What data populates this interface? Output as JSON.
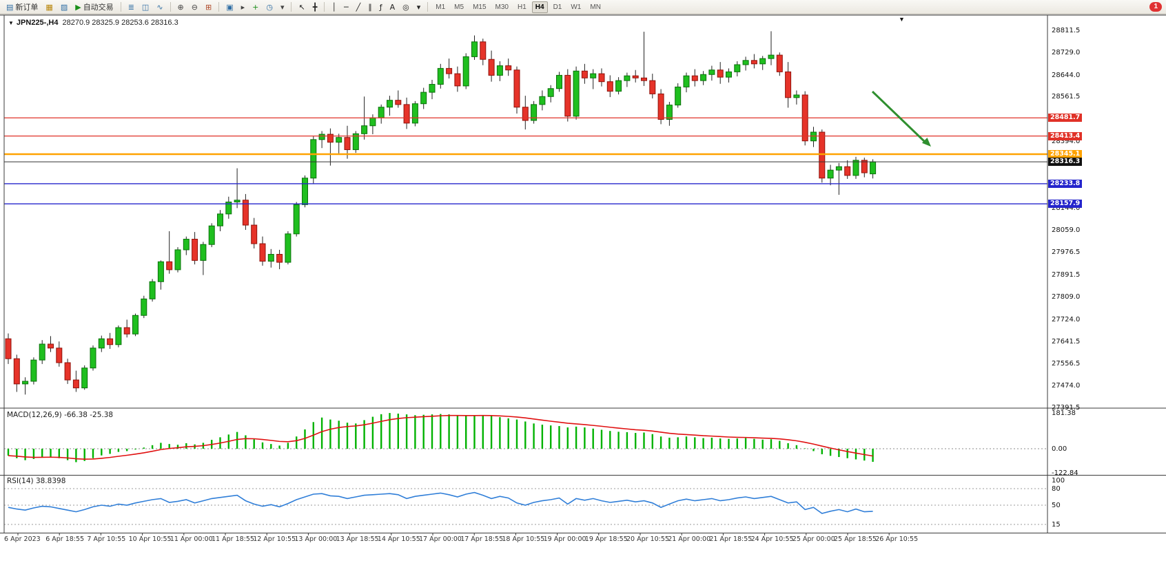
{
  "toolbar": {
    "notification_count": "1",
    "groups": [
      {
        "buttons": [
          {
            "name": "new-order-button",
            "icon": "new-order-icon",
            "glyph": "▤",
            "glyph_color": "#2e6da4",
            "label": "新订单"
          },
          {
            "name": "charts-button",
            "icon": "chart-window-icon",
            "glyph": "▦",
            "glyph_color": "#b8860b"
          },
          {
            "name": "profiles-button",
            "icon": "profiles-icon",
            "glyph": "▨",
            "glyph_color": "#2e6da4"
          },
          {
            "name": "auto-trading-button",
            "icon": "auto-trading-icon",
            "glyph": "▶",
            "glyph_color": "#1a8f1a",
            "label": "自动交易"
          }
        ]
      },
      {
        "buttons": [
          {
            "name": "bar-chart-button",
            "icon": "bar-chart-icon",
            "glyph": "≣",
            "glyph_color": "#2e6da4"
          },
          {
            "name": "candlestick-chart-button",
            "icon": "candlestick-chart-icon",
            "glyph": "◫",
            "glyph_color": "#2e6da4"
          },
          {
            "name": "line-chart-button",
            "icon": "line-chart-icon",
            "glyph": "∿",
            "glyph_color": "#2e6da4"
          }
        ]
      },
      {
        "buttons": [
          {
            "name": "zoom-in-button",
            "icon": "zoom-in-icon",
            "glyph": "⊕",
            "glyph_color": "#444444"
          },
          {
            "name": "zoom-out-button",
            "icon": "zoom-out-icon",
            "glyph": "⊖",
            "glyph_color": "#444444"
          },
          {
            "name": "tile-windows-button",
            "icon": "tile-windows-icon",
            "glyph": "⊞",
            "glyph_color": "#b04a2a"
          }
        ]
      },
      {
        "buttons": [
          {
            "name": "arrange-windows-button",
            "icon": "arrange-windows-icon",
            "glyph": "▣",
            "glyph_color": "#2e6da4"
          },
          {
            "name": "auto-scroll-button",
            "icon": "auto-scroll-icon",
            "glyph": "▸",
            "glyph_color": "#444444"
          },
          {
            "name": "indicators-button",
            "icon": "add-indicator-icon",
            "glyph": "+",
            "glyph_color": "#1a8f1a"
          },
          {
            "name": "periods-button",
            "icon": "clock-icon",
            "glyph": "◷",
            "glyph_color": "#2e6da4"
          },
          {
            "name": "templates-button",
            "icon": "templates-icon",
            "glyph": "▾",
            "glyph_color": "#444444"
          }
        ]
      },
      {
        "buttons": [
          {
            "name": "cursor-button",
            "icon": "cursor-icon",
            "glyph": "↖",
            "glyph_color": "#222222"
          },
          {
            "name": "crosshair-button",
            "icon": "crosshair-icon",
            "glyph": "╋",
            "glyph_color": "#222222"
          }
        ]
      },
      {
        "buttons": [
          {
            "name": "vertical-line-button",
            "icon": "vertical-line-icon",
            "glyph": "│",
            "glyph_color": "#222222"
          },
          {
            "name": "horizontal-line-button",
            "icon": "horizontal-line-icon",
            "glyph": "─",
            "glyph_color": "#222222"
          },
          {
            "name": "trendline-button",
            "icon": "trendline-icon",
            "glyph": "╱",
            "glyph_color": "#222222"
          },
          {
            "name": "channel-button",
            "icon": "equidistant-channel-icon",
            "glyph": "∥",
            "glyph_color": "#222222"
          },
          {
            "name": "fibonacci-button",
            "icon": "fibonacci-icon",
            "glyph": "ƒ",
            "glyph_color": "#222222"
          },
          {
            "name": "text-button",
            "icon": "text-icon",
            "glyph": "A",
            "glyph_color": "#222222"
          },
          {
            "name": "arrow-tool-button",
            "icon": "arrow-object-icon",
            "glyph": "◎",
            "glyph_color": "#222222"
          },
          {
            "name": "shapes-button",
            "icon": "shapes-dropdown-icon",
            "glyph": "▾",
            "glyph_color": "#222222"
          }
        ]
      }
    ],
    "timeframes": {
      "items": [
        "M1",
        "M5",
        "M15",
        "M30",
        "H1",
        "H4",
        "D1",
        "W1",
        "MN"
      ],
      "active": "H4"
    }
  },
  "chart": {
    "symbol_label": "JPN225-,H4",
    "ohlc": "28270.9 28325.9 28253.6 28316.3",
    "price_range": {
      "max": 28811.5,
      "min": 27391.5
    },
    "colors": {
      "bull": "#1fbf1f",
      "bull_border": "#0a700a",
      "bear": "#e63329",
      "bear_border": "#8f120b",
      "wick": "#222222",
      "macd_hist": "#00b200",
      "macd_signal": "#e01010",
      "rsi_line": "#2f7ed8",
      "arrow": "#2f8f2f"
    },
    "axis_ticks": [
      28811.5,
      28729.0,
      28644.0,
      28561.5,
      28394.0,
      28144.0,
      28059.0,
      27976.5,
      27891.5,
      27809.0,
      27724.0,
      27641.5,
      27556.5,
      27474.0,
      27391.5
    ],
    "levels": [
      {
        "price": 28481.7,
        "label": "28481.7",
        "color": "#e03127",
        "width": 1.2
      },
      {
        "price": 28413.4,
        "label": "28413.4",
        "color": "#e03127",
        "width": 1.2
      },
      {
        "price": 28345.1,
        "label": "28345.1",
        "color": "#ffa200",
        "width": 2.4
      },
      {
        "price": 28316.3,
        "label": "28316.3",
        "color": "#333333",
        "width": 1,
        "badge": "#111111"
      },
      {
        "price": 28233.8,
        "label": "28233.8",
        "color": "#2424cc",
        "width": 1.4
      },
      {
        "price": 28157.9,
        "label": "28157.9",
        "color": "#2424cc",
        "width": 1.4
      }
    ],
    "annotation": {
      "type": "arrow",
      "color": "#2f8f2f",
      "from": [
        1266,
        133
      ],
      "to": [
        1351,
        213
      ]
    }
  },
  "chart_data": {
    "type": "candlestick",
    "symbol": "JPN225-",
    "timeframe": "H4",
    "candles": [
      [
        27650,
        27670,
        27555,
        27575
      ],
      [
        27575,
        27590,
        27450,
        27480
      ],
      [
        27480,
        27505,
        27440,
        27490
      ],
      [
        27490,
        27580,
        27478,
        27570
      ],
      [
        27570,
        27645,
        27555,
        27630
      ],
      [
        27630,
        27660,
        27600,
        27615
      ],
      [
        27615,
        27640,
        27545,
        27560
      ],
      [
        27560,
        27575,
        27480,
        27495
      ],
      [
        27495,
        27530,
        27450,
        27465
      ],
      [
        27465,
        27550,
        27458,
        27540
      ],
      [
        27540,
        27625,
        27530,
        27615
      ],
      [
        27615,
        27662,
        27600,
        27650
      ],
      [
        27650,
        27672,
        27612,
        27628
      ],
      [
        27628,
        27700,
        27618,
        27692
      ],
      [
        27692,
        27722,
        27655,
        27668
      ],
      [
        27668,
        27745,
        27660,
        27738
      ],
      [
        27738,
        27812,
        27728,
        27800
      ],
      [
        27800,
        27875,
        27790,
        27865
      ],
      [
        27865,
        27945,
        27835,
        27940
      ],
      [
        27940,
        28055,
        27895,
        27910
      ],
      [
        27910,
        27995,
        27900,
        27985
      ],
      [
        27985,
        28035,
        27965,
        28025
      ],
      [
        28025,
        28052,
        27930,
        27945
      ],
      [
        27945,
        28015,
        27890,
        28005
      ],
      [
        28005,
        28085,
        27995,
        28075
      ],
      [
        28075,
        28135,
        28055,
        28120
      ],
      [
        28120,
        28185,
        28102,
        28165
      ],
      [
        28165,
        28292,
        28142,
        28172
      ],
      [
        28172,
        28195,
        28060,
        28078
      ],
      [
        28078,
        28105,
        27990,
        28008
      ],
      [
        28008,
        28035,
        27925,
        27942
      ],
      [
        27942,
        27988,
        27918,
        27968
      ],
      [
        27968,
        27985,
        27912,
        27938
      ],
      [
        27938,
        28055,
        27930,
        28045
      ],
      [
        28045,
        28165,
        28035,
        28155
      ],
      [
        28155,
        28265,
        28145,
        28255
      ],
      [
        28255,
        28412,
        28235,
        28400
      ],
      [
        28400,
        28432,
        28368,
        28420
      ],
      [
        28420,
        28442,
        28302,
        28390
      ],
      [
        28390,
        28422,
        28348,
        28408
      ],
      [
        28408,
        28452,
        28328,
        28362
      ],
      [
        28362,
        28432,
        28350,
        28422
      ],
      [
        28422,
        28562,
        28400,
        28452
      ],
      [
        28452,
        28495,
        28420,
        28482
      ],
      [
        28482,
        28532,
        28460,
        28522
      ],
      [
        28522,
        28565,
        28490,
        28548
      ],
      [
        28548,
        28585,
        28520,
        28532
      ],
      [
        28532,
        28558,
        28440,
        28462
      ],
      [
        28462,
        28545,
        28450,
        28535
      ],
      [
        28535,
        28595,
        28515,
        28578
      ],
      [
        28578,
        28625,
        28552,
        28608
      ],
      [
        28608,
        28685,
        28592,
        28668
      ],
      [
        28668,
        28705,
        28630,
        28648
      ],
      [
        28648,
        28675,
        28580,
        28602
      ],
      [
        28602,
        28725,
        28590,
        28712
      ],
      [
        28712,
        28792,
        28700,
        28768
      ],
      [
        28768,
        28780,
        28680,
        28702
      ],
      [
        28702,
        28735,
        28618,
        28642
      ],
      [
        28642,
        28695,
        28620,
        28678
      ],
      [
        28678,
        28705,
        28640,
        28662
      ],
      [
        28662,
        28675,
        28498,
        28522
      ],
      [
        28522,
        28565,
        28438,
        28472
      ],
      [
        28472,
        28545,
        28460,
        28532
      ],
      [
        28532,
        28585,
        28510,
        28562
      ],
      [
        28562,
        28605,
        28540,
        28592
      ],
      [
        28592,
        28655,
        28580,
        28642
      ],
      [
        28642,
        28665,
        28468,
        28488
      ],
      [
        28488,
        28675,
        28475,
        28658
      ],
      [
        28658,
        28685,
        28610,
        28632
      ],
      [
        28632,
        28665,
        28590,
        28648
      ],
      [
        28648,
        28668,
        28600,
        28618
      ],
      [
        28618,
        28642,
        28560,
        28582
      ],
      [
        28582,
        28635,
        28570,
        28622
      ],
      [
        28622,
        28652,
        28598,
        28640
      ],
      [
        28640,
        28662,
        28615,
        28632
      ],
      [
        28632,
        28806,
        28602,
        28622
      ],
      [
        28622,
        28648,
        28555,
        28572
      ],
      [
        28572,
        28590,
        28458,
        28476
      ],
      [
        28476,
        28542,
        28452,
        28530
      ],
      [
        28530,
        28612,
        28520,
        28598
      ],
      [
        28598,
        28652,
        28578,
        28640
      ],
      [
        28640,
        28665,
        28600,
        28622
      ],
      [
        28622,
        28658,
        28605,
        28645
      ],
      [
        28645,
        28678,
        28622,
        28662
      ],
      [
        28662,
        28692,
        28610,
        28635
      ],
      [
        28635,
        28668,
        28615,
        28655
      ],
      [
        28655,
        28695,
        28638,
        28682
      ],
      [
        28682,
        28712,
        28660,
        28698
      ],
      [
        28698,
        28722,
        28668,
        28685
      ],
      [
        28685,
        28715,
        28662,
        28705
      ],
      [
        28705,
        28808,
        28680,
        28718
      ],
      [
        28718,
        28728,
        28640,
        28655
      ],
      [
        28655,
        28692,
        28520,
        28558
      ],
      [
        28558,
        28585,
        28532,
        28568
      ],
      [
        28568,
        28582,
        28378,
        28395
      ],
      [
        28395,
        28448,
        28372,
        28428
      ],
      [
        28428,
        28438,
        28238,
        28255
      ],
      [
        28255,
        28305,
        28228,
        28285
      ],
      [
        28285,
        28312,
        28192,
        28298
      ],
      [
        28298,
        28322,
        28252,
        28265
      ],
      [
        28265,
        28335,
        28252,
        28322
      ],
      [
        28322,
        28332,
        28258,
        28275
      ],
      [
        28270.9,
        28325.9,
        28253.6,
        28316.3
      ]
    ],
    "macd": {
      "label": "MACD(12,26,9) -66.38 -25.38",
      "axis": [
        "181.38",
        "0.00",
        "-122.84"
      ],
      "axis_values": [
        181.38,
        0,
        -122.84
      ],
      "values": [
        -35,
        -48,
        -58,
        -52,
        -42,
        -40,
        -48,
        -58,
        -68,
        -62,
        -48,
        -34,
        -26,
        -16,
        -12,
        -4,
        6,
        18,
        30,
        24,
        20,
        28,
        22,
        30,
        45,
        58,
        72,
        85,
        68,
        48,
        32,
        24,
        16,
        30,
        62,
        98,
        135,
        158,
        148,
        142,
        132,
        128,
        145,
        162,
        175,
        181,
        178,
        174,
        170,
        172,
        174,
        176,
        174,
        170,
        166,
        168,
        170,
        166,
        160,
        154,
        148,
        138,
        128,
        122,
        118,
        115,
        108,
        112,
        108,
        102,
        96,
        90,
        86,
        84,
        80,
        82,
        74,
        62,
        56,
        58,
        62,
        58,
        54,
        56,
        52,
        50,
        52,
        54,
        50,
        46,
        48,
        40,
        28,
        18,
        2,
        -12,
        -28,
        -36,
        -42,
        -48,
        -54,
        -60,
        -66.38
      ]
    },
    "rsi": {
      "label": "RSI(14) 38.8398",
      "axis": [
        "100",
        "80",
        "50",
        "15"
      ],
      "axis_values": [
        100,
        80,
        50,
        15
      ],
      "levels": [
        80,
        50,
        15
      ],
      "values": [
        46,
        43,
        41,
        45,
        48,
        47,
        44,
        41,
        38,
        42,
        47,
        50,
        48,
        52,
        50,
        54,
        57,
        60,
        62,
        55,
        57,
        60,
        54,
        58,
        62,
        64,
        66,
        68,
        58,
        52,
        48,
        51,
        47,
        53,
        60,
        65,
        70,
        71,
        67,
        66,
        62,
        65,
        68,
        69,
        70,
        71,
        69,
        62,
        66,
        68,
        70,
        72,
        69,
        65,
        70,
        73,
        68,
        62,
        66,
        63,
        54,
        50,
        55,
        58,
        60,
        63,
        52,
        62,
        59,
        62,
        58,
        55,
        57,
        59,
        56,
        58,
        54,
        46,
        52,
        58,
        61,
        58,
        60,
        62,
        58,
        60,
        63,
        65,
        62,
        64,
        66,
        60,
        54,
        56,
        42,
        46,
        35,
        39,
        42,
        38,
        43,
        38,
        38.84
      ]
    },
    "time_labels": [
      "6 Apr 2023",
      "6 Apr 18:55",
      "7 Apr 10:55",
      "10 Apr 10:55",
      "11 Apr 00:00",
      "11 Apr 18:55",
      "12 Apr 10:55",
      "13 Apr 00:00",
      "13 Apr 18:55",
      "14 Apr 10:55",
      "17 Apr 00:00",
      "17 Apr 18:55",
      "18 Apr 10:55",
      "19 Apr 00:00",
      "19 Apr 18:55",
      "20 Apr 10:55",
      "21 Apr 00:00",
      "21 Apr 18:55",
      "24 Apr 10:55",
      "25 Apr 00:00",
      "25 Apr 18:55",
      "26 Apr 10:55"
    ]
  }
}
